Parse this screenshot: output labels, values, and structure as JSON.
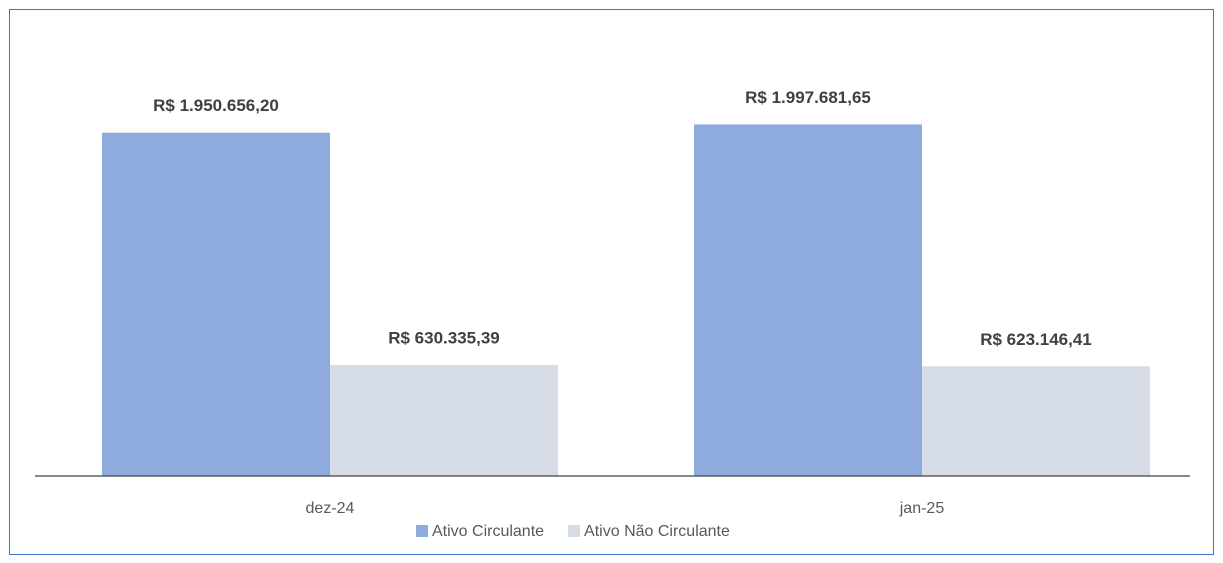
{
  "chart_data": {
    "type": "bar",
    "categories": [
      "dez-24",
      "jan-25"
    ],
    "series": [
      {
        "name": "Ativo Circulante",
        "color": "#8faadc",
        "values": [
          1950656.2,
          1997681.65
        ],
        "value_labels": [
          "R$ 1.950.656,20",
          "R$ 1.997.681,65"
        ]
      },
      {
        "name": "Ativo Não Circulante",
        "color": "#d6dce5",
        "values": [
          630335.39,
          623146.41
        ],
        "value_labels": [
          "R$ 630.335,39",
          "R$ 623.146,41"
        ]
      }
    ],
    "ylim": [
      0,
      2500000
    ],
    "legend": "bottom"
  }
}
